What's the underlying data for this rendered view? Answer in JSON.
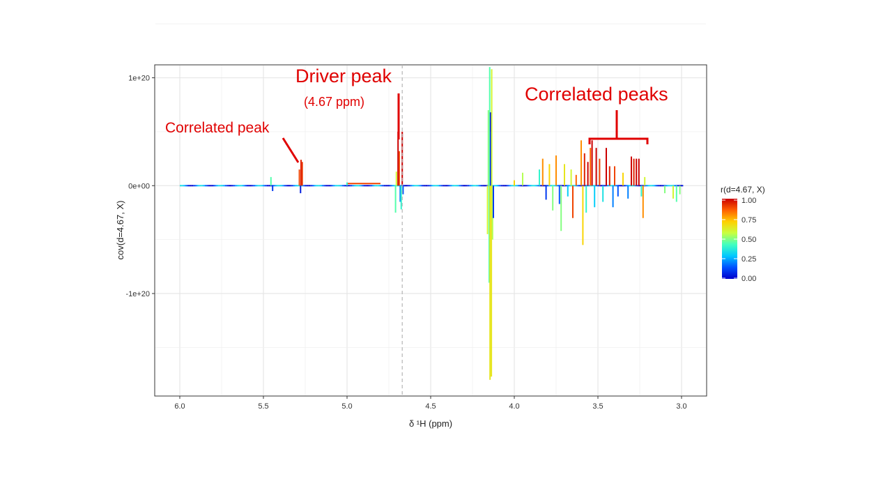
{
  "chart_data": {
    "type": "line",
    "xlabel": "δ ¹H (ppm)",
    "ylabel": "cov(d=4.67, X)",
    "x_axis_reversed": true,
    "xlim": [
      6.15,
      2.85
    ],
    "ylim": [
      -1.95e+20,
      1.12e+20
    ],
    "x_ticks": [
      6.0,
      5.5,
      5.0,
      4.5,
      4.0,
      3.5,
      3.0
    ],
    "x_tick_labels": [
      "6.0",
      "5.5",
      "5.0",
      "4.5",
      "4.0",
      "3.5",
      "3.0"
    ],
    "y_ticks": [
      1e+20,
      0,
      -1e+20
    ],
    "y_tick_labels": [
      "1e+20",
      "0e+00",
      "-1e+20"
    ],
    "grid": true,
    "driver_line_ppm": 4.67,
    "color_legend": {
      "title": "r(d=4.67, X)",
      "range": [
        0,
        1
      ],
      "ticks": [
        "1.00",
        "0.75",
        "0.50",
        "0.25",
        "0.00"
      ],
      "colors": [
        "#0000cc",
        "#0050ff",
        "#00c8ff",
        "#40ffc0",
        "#c8ff40",
        "#ffd000",
        "#ff6000",
        "#cc0000"
      ]
    },
    "peaks": [
      {
        "x": 5.455,
        "y": 8e+18,
        "r": 0.45
      },
      {
        "x": 5.445,
        "y": -5e+18,
        "r": 0.1
      },
      {
        "x": 5.285,
        "y": 1.5e+19,
        "r": 0.9
      },
      {
        "x": 5.275,
        "y": 2.4e+19,
        "r": 0.95
      },
      {
        "x": 5.268,
        "y": 2.2e+19,
        "r": 0.92
      },
      {
        "x": 5.278,
        "y": -7e+18,
        "r": 0.05
      },
      {
        "x": 5.0,
        "y": 3e+18,
        "r": 0.4
      },
      {
        "x": 4.71,
        "y": -2.5e+19,
        "r": 0.45
      },
      {
        "x": 4.705,
        "y": 1.3e+19,
        "r": 0.6
      },
      {
        "x": 4.695,
        "y": 5e+19,
        "r": 1.0
      },
      {
        "x": 4.688,
        "y": 3.2e+19,
        "r": 0.9
      },
      {
        "x": 4.682,
        "y": -1.5e+19,
        "r": 0.2
      },
      {
        "x": 4.676,
        "y": -2.2e+19,
        "r": 0.4
      },
      {
        "x": 4.67,
        "y": 5e+19,
        "r": 1.0
      },
      {
        "x": 4.665,
        "y": -8e+18,
        "r": 0.15
      },
      {
        "x": 4.16,
        "y": -4.5e+19,
        "r": 0.6
      },
      {
        "x": 4.155,
        "y": 7e+19,
        "r": 0.5
      },
      {
        "x": 4.15,
        "y": -9e+19,
        "r": 0.45
      },
      {
        "x": 4.147,
        "y": 1.1e+20,
        "r": 0.45
      },
      {
        "x": 4.145,
        "y": -1.8e+20,
        "r": 0.65
      },
      {
        "x": 4.142,
        "y": 6.8e+19,
        "r": 0.05
      },
      {
        "x": 4.14,
        "y": 5e+19,
        "r": 0.1
      },
      {
        "x": 4.137,
        "y": -1.77e+20,
        "r": 0.65
      },
      {
        "x": 4.135,
        "y": 1.08e+20,
        "r": 0.6
      },
      {
        "x": 4.13,
        "y": -5e+19,
        "r": 0.55
      },
      {
        "x": 4.125,
        "y": -3e+19,
        "r": 0.1
      },
      {
        "x": 4.0,
        "y": 5e+18,
        "r": 0.7
      },
      {
        "x": 3.95,
        "y": 1.2e+19,
        "r": 0.55
      },
      {
        "x": 3.85,
        "y": 1.5e+19,
        "r": 0.4
      },
      {
        "x": 3.83,
        "y": 2.5e+19,
        "r": 0.8
      },
      {
        "x": 3.81,
        "y": -1.3e+19,
        "r": 0.1
      },
      {
        "x": 3.79,
        "y": 2e+19,
        "r": 0.7
      },
      {
        "x": 3.77,
        "y": -2.3e+19,
        "r": 0.5
      },
      {
        "x": 3.75,
        "y": 2.8e+19,
        "r": 0.8
      },
      {
        "x": 3.73,
        "y": -1.7e+19,
        "r": 0.15
      },
      {
        "x": 3.72,
        "y": -4.2e+19,
        "r": 0.5
      },
      {
        "x": 3.7,
        "y": 2e+19,
        "r": 0.65
      },
      {
        "x": 3.68,
        "y": -1e+19,
        "r": 0.3
      },
      {
        "x": 3.66,
        "y": 1.5e+19,
        "r": 0.6
      },
      {
        "x": 3.65,
        "y": -3e+19,
        "r": 0.9
      },
      {
        "x": 3.63,
        "y": 1e+19,
        "r": 0.85
      },
      {
        "x": 3.6,
        "y": 4.2e+19,
        "r": 0.8
      },
      {
        "x": 3.59,
        "y": -5.5e+19,
        "r": 0.7
      },
      {
        "x": 3.58,
        "y": 3e+19,
        "r": 0.95
      },
      {
        "x": 3.57,
        "y": -2.5e+19,
        "r": 0.4
      },
      {
        "x": 3.56,
        "y": 2.2e+19,
        "r": 1.0
      },
      {
        "x": 3.545,
        "y": 3.5e+19,
        "r": 0.85
      },
      {
        "x": 3.535,
        "y": 4.2e+19,
        "r": 1.0
      },
      {
        "x": 3.52,
        "y": -2e+19,
        "r": 0.3
      },
      {
        "x": 3.51,
        "y": 3.5e+19,
        "r": 1.0
      },
      {
        "x": 3.49,
        "y": 2.5e+19,
        "r": 0.9
      },
      {
        "x": 3.47,
        "y": -1.5e+19,
        "r": 0.35
      },
      {
        "x": 3.45,
        "y": 3.5e+19,
        "r": 1.0
      },
      {
        "x": 3.43,
        "y": 1.8e+19,
        "r": 0.95
      },
      {
        "x": 3.41,
        "y": -2e+19,
        "r": 0.2
      },
      {
        "x": 3.4,
        "y": 1.8e+19,
        "r": 0.9
      },
      {
        "x": 3.38,
        "y": -1e+19,
        "r": 0.15
      },
      {
        "x": 3.35,
        "y": 1.2e+19,
        "r": 0.7
      },
      {
        "x": 3.32,
        "y": -1.2e+19,
        "r": 0.2
      },
      {
        "x": 3.3,
        "y": 2.7e+19,
        "r": 1.0
      },
      {
        "x": 3.285,
        "y": 2.5e+19,
        "r": 0.95
      },
      {
        "x": 3.27,
        "y": 2.5e+19,
        "r": 1.0
      },
      {
        "x": 3.255,
        "y": 2.5e+19,
        "r": 1.0
      },
      {
        "x": 3.24,
        "y": -1e+19,
        "r": 0.4
      },
      {
        "x": 3.23,
        "y": -3e+19,
        "r": 0.8
      },
      {
        "x": 3.22,
        "y": 8e+18,
        "r": 0.6
      },
      {
        "x": 3.1,
        "y": -7e+18,
        "r": 0.5
      },
      {
        "x": 3.05,
        "y": -1.2e+19,
        "r": 0.6
      },
      {
        "x": 3.03,
        "y": -1.5e+19,
        "r": 0.45
      },
      {
        "x": 3.01,
        "y": -8e+18,
        "r": 0.5
      }
    ],
    "flat_segments": [
      {
        "from": 5.0,
        "to": 4.8,
        "y": 2e+18,
        "r": 0.9
      }
    ]
  },
  "annotations": {
    "correlated_peak": "Correlated peak",
    "driver_peak": "Driver peak",
    "driver_ppm": "(4.67 ppm)",
    "correlated_peaks": "Correlated peaks"
  }
}
